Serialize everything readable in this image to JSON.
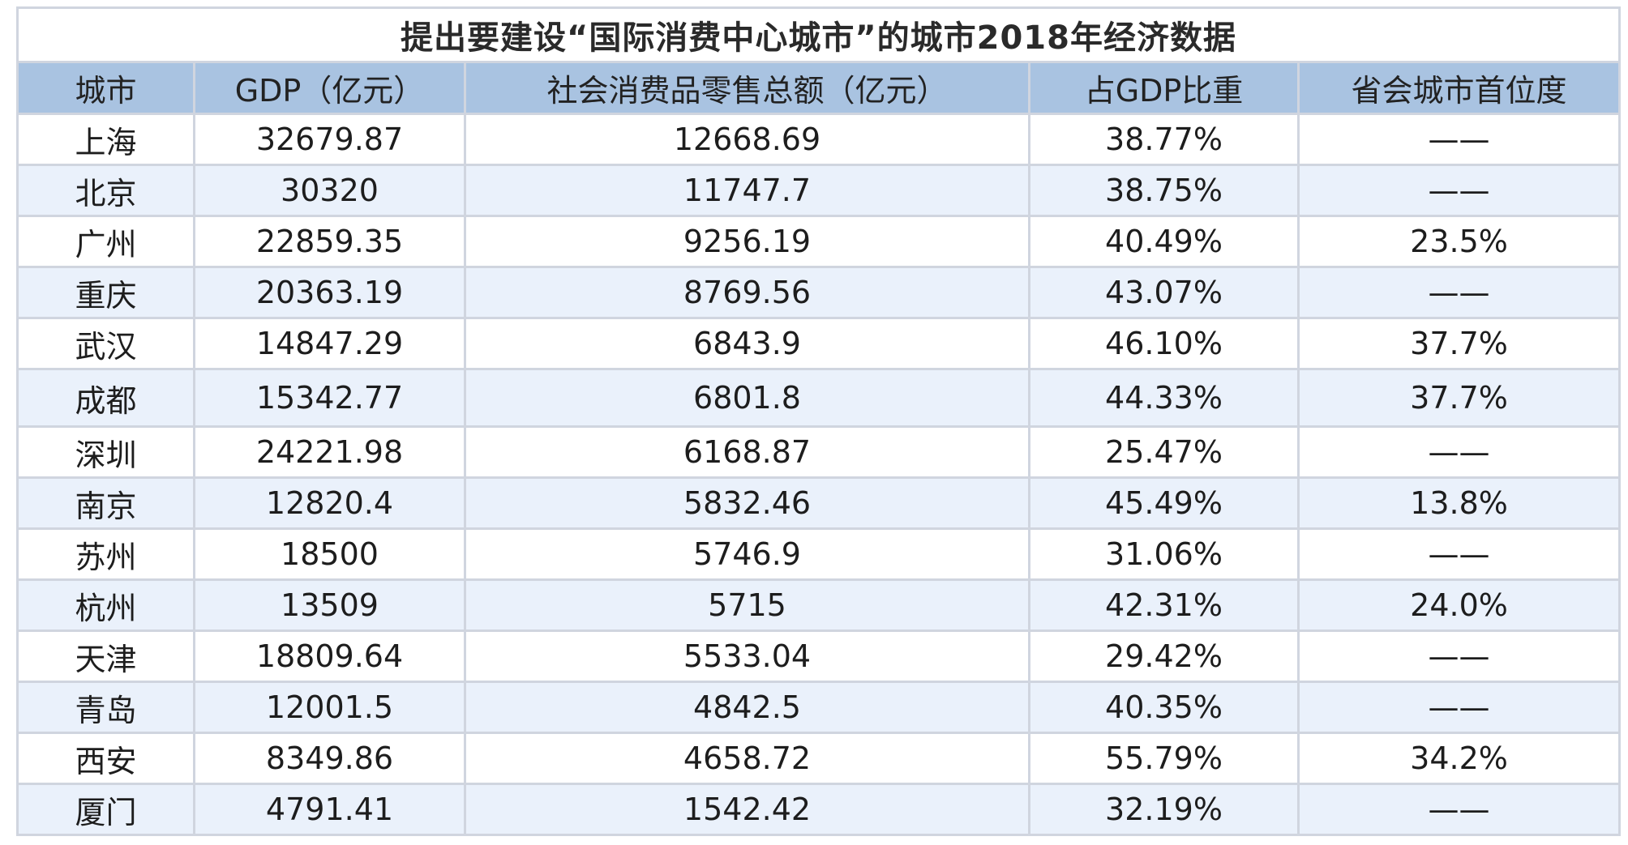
{
  "title": "提出要建设“国际消费中心城市”的城市2018年经济数据",
  "columns": [
    "城市",
    "GDP（亿元）",
    "社会消费品零售总额（亿元）",
    "占GDP比重",
    "省会城市首位度"
  ],
  "rows": [
    [
      "上海",
      "32679.87",
      "12668.69",
      "38.77%",
      "——"
    ],
    [
      "北京",
      "30320",
      "11747.7",
      "38.75%",
      "——"
    ],
    [
      "广州",
      "22859.35",
      "9256.19",
      "40.49%",
      "23.5%"
    ],
    [
      "重庆",
      "20363.19",
      "8769.56",
      "43.07%",
      "——"
    ],
    [
      "武汉",
      "14847.29",
      "6843.9",
      "46.10%",
      "37.7%"
    ],
    [
      "成都",
      "15342.77",
      "6801.8",
      "44.33%",
      "37.7%"
    ],
    [
      "深圳",
      "24221.98",
      "6168.87",
      "25.47%",
      "——"
    ],
    [
      "南京",
      "12820.4",
      "5832.46",
      "45.49%",
      "13.8%"
    ],
    [
      "苏州",
      "18500",
      "5746.9",
      "31.06%",
      "——"
    ],
    [
      "杭州",
      "13509",
      "5715",
      "42.31%",
      "24.0%"
    ],
    [
      "天津",
      "18809.64",
      "5533.04",
      "29.42%",
      "——"
    ],
    [
      "青岛",
      "12001.5",
      "4842.5",
      "40.35%",
      "——"
    ],
    [
      "西安",
      "8349.86",
      "4658.72",
      "55.79%",
      "34.2%"
    ],
    [
      "厦门",
      "4791.41",
      "1542.42",
      "32.19%",
      "——"
    ]
  ],
  "colors": {
    "header_bg": "#a9c3e1",
    "row_alt_bg": "#eaf1fb",
    "border": "#d0d5df"
  }
}
